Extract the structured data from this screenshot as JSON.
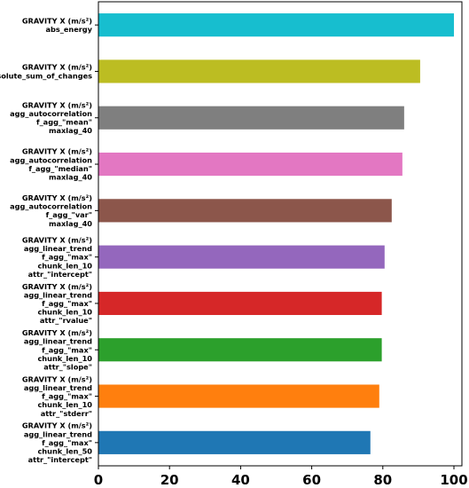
{
  "chart_data": {
    "type": "bar",
    "orientation": "horizontal",
    "title": "",
    "xlabel": "",
    "ylabel": "",
    "xlim": [
      0,
      100
    ],
    "xticks": [
      0,
      20,
      40,
      60,
      80,
      100
    ],
    "grid": false,
    "legend": "none",
    "categories": [
      [
        "GRAVITY X (m/s²)",
        "abs_energy"
      ],
      [
        "GRAVITY X (m/s²)",
        "absolute_sum_of_changes"
      ],
      [
        "GRAVITY X (m/s²)",
        "agg_autocorrelation",
        "f_agg_\"mean\"",
        "maxlag_40"
      ],
      [
        "GRAVITY X (m/s²)",
        "agg_autocorrelation",
        "f_agg_\"median\"",
        "maxlag_40"
      ],
      [
        "GRAVITY X (m/s²)",
        "agg_autocorrelation",
        "f_agg_\"var\"",
        "maxlag_40"
      ],
      [
        "GRAVITY X (m/s²)",
        "agg_linear_trend",
        "f_agg_\"max\"",
        "chunk_len_10",
        "attr_\"intercept\""
      ],
      [
        "GRAVITY X (m/s²)",
        "agg_linear_trend",
        "f_agg_\"max\"",
        "chunk_len_10",
        "attr_\"rvalue\""
      ],
      [
        "GRAVITY X (m/s²)",
        "agg_linear_trend",
        "f_agg_\"max\"",
        "chunk_len_10",
        "attr_\"slope\""
      ],
      [
        "GRAVITY X (m/s²)",
        "agg_linear_trend",
        "f_agg_\"max\"",
        "chunk_len_10",
        "attr_\"stderr\""
      ],
      [
        "GRAVITY X (m/s²)",
        "agg_linear_trend",
        "f_agg_\"max\"",
        "chunk_len_50",
        "attr_\"intercept\""
      ]
    ],
    "values": [
      100,
      90.5,
      86,
      85.5,
      82.5,
      80.5,
      79.7,
      79.7,
      79,
      76.5
    ],
    "colors": [
      "#17becf",
      "#bcbd22",
      "#7f7f7f",
      "#e377c2",
      "#8c564b",
      "#9467bd",
      "#d62728",
      "#2ca02c",
      "#ff7f0e",
      "#1f77b4"
    ]
  }
}
